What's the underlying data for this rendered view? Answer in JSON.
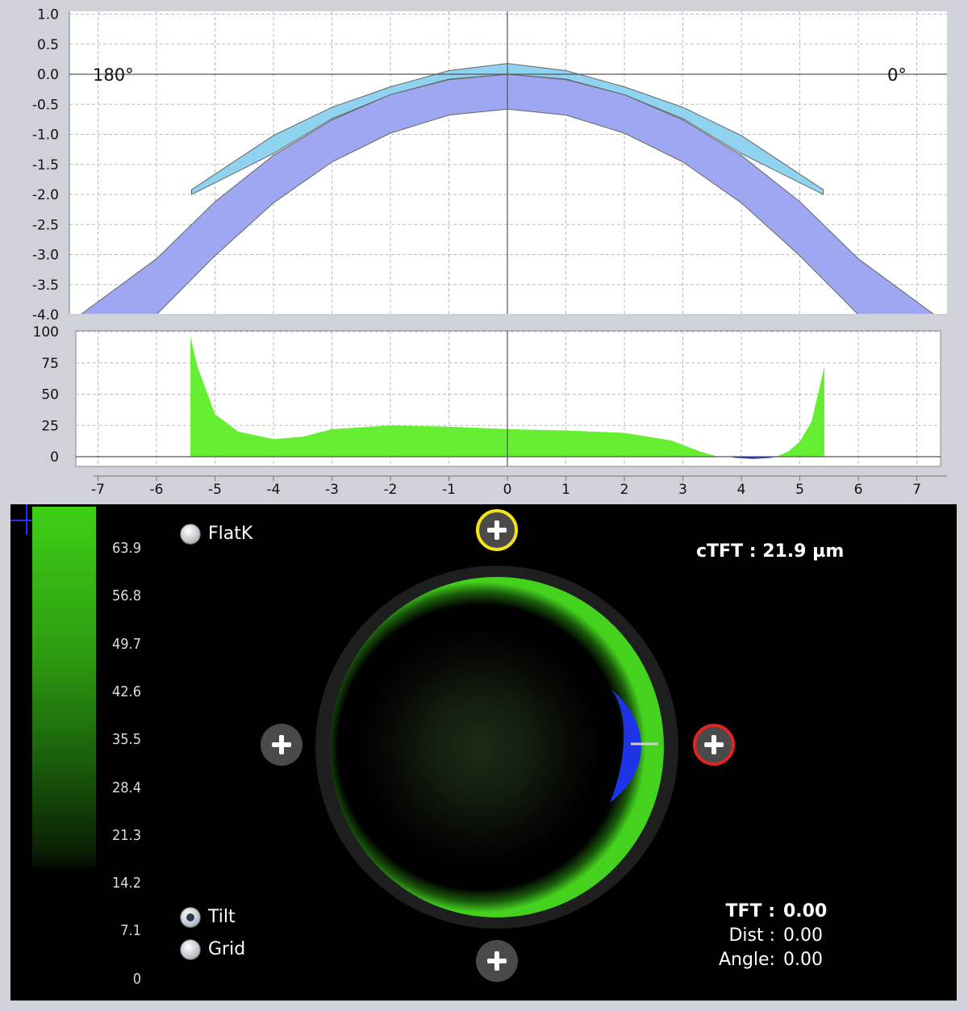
{
  "chart_data": [
    {
      "type": "area",
      "x": [
        -7.3,
        7.3
      ],
      "xlim": [
        -7.3,
        7.3
      ],
      "ylim": [
        -4.0,
        1.0
      ],
      "ticks_y": [
        "1.0",
        "0.5",
        "0.0",
        "-0.5",
        "-1.0",
        "-1.5",
        "-2.0",
        "-2.5",
        "-3.0",
        "-3.5",
        "-4.0"
      ],
      "annotations": {
        "left": "180°",
        "right": "0°"
      },
      "grid": true,
      "series": [
        {
          "color": "#9ea8f2",
          "x": [
            -7.3,
            -6,
            -5,
            -4,
            -3,
            -2,
            -1,
            0,
            1,
            2,
            3,
            4,
            5,
            6,
            7.3
          ],
          "y_top": [
            -4.0,
            -3.07,
            -2.12,
            -1.35,
            -0.76,
            -0.34,
            -0.09,
            0.0,
            -0.09,
            -0.34,
            -0.76,
            -1.35,
            -2.12,
            -3.07,
            -4.0
          ],
          "y_bottom": [
            -4.0,
            -4.0,
            -3.02,
            -2.14,
            -1.46,
            -0.98,
            -0.68,
            -0.58,
            -0.68,
            -0.98,
            -1.46,
            -2.14,
            -3.02,
            -4.0,
            -4.0
          ]
        },
        {
          "color": "#8fd3f0",
          "x": [
            -5.4,
            -4,
            -3,
            -2,
            -1,
            0,
            1,
            2,
            3,
            4,
            5.4
          ],
          "y_top": [
            -1.92,
            -1.02,
            -0.55,
            -0.21,
            0.06,
            0.18,
            0.06,
            -0.21,
            -0.55,
            -1.02,
            -1.92
          ],
          "y_bottom": [
            -2.0,
            -1.32,
            -0.74,
            -0.34,
            -0.08,
            0.0,
            -0.08,
            -0.34,
            -0.74,
            -1.32,
            -2.0
          ]
        }
      ]
    },
    {
      "type": "area",
      "xlim": [
        -7.3,
        7.3
      ],
      "ylim": [
        0,
        100
      ],
      "ticks_x": [
        "-7",
        "-6",
        "-5",
        "-4",
        "-3",
        "-2",
        "-1",
        "0",
        "1",
        "2",
        "3",
        "4",
        "5",
        "6",
        "7"
      ],
      "ticks_y": [
        "100",
        "75",
        "50",
        "25",
        "0"
      ],
      "grid": true,
      "series": [
        {
          "color": "#66ee33",
          "x": [
            -5.42,
            -5.42,
            -5.3,
            -5.0,
            -4.6,
            -4.0,
            -3.5,
            -3.0,
            -2.0,
            -1.0,
            0.0,
            1.0,
            2.0,
            2.8,
            3.3,
            3.6,
            3.7,
            4.6,
            4.8,
            5.0,
            5.2,
            5.42,
            5.42
          ],
          "y": [
            0,
            96,
            72,
            34,
            20,
            14,
            16,
            22,
            25,
            24,
            22,
            21,
            19,
            13,
            4,
            0,
            0,
            0,
            4,
            12,
            28,
            72,
            0
          ]
        },
        {
          "color": "#1d34e6",
          "x": [
            3.8,
            3.9,
            4.2,
            4.5,
            4.6
          ],
          "y": [
            0,
            -1,
            -1.8,
            -1,
            0
          ]
        }
      ]
    }
  ],
  "scale": {
    "labels": [
      "63.9",
      "56.8",
      "49.7",
      "42.6",
      "35.5",
      "28.4",
      "21.3",
      "14.2",
      "7.1",
      "0"
    ]
  },
  "options": {
    "flatk": "FlatK",
    "tilt": "Tilt",
    "grid": "Grid"
  },
  "readouts": {
    "ctft": "cTFT : 21.9 µm",
    "tft_label": "TFT  :",
    "tft_value": "0.00",
    "dist_label": "Dist :",
    "dist_value": "0.00",
    "angle_label": "Angle:",
    "angle_value": "0.00"
  },
  "colors": {
    "accent_green": "#44d21e",
    "pooling_blue": "#1d34e6",
    "marker_yellow": "#f2e31a",
    "marker_red": "#e32222"
  },
  "icons": [
    "plus-top-icon",
    "plus-left-icon",
    "plus-right-icon",
    "plus-bottom-icon",
    "crosshair-icon"
  ]
}
